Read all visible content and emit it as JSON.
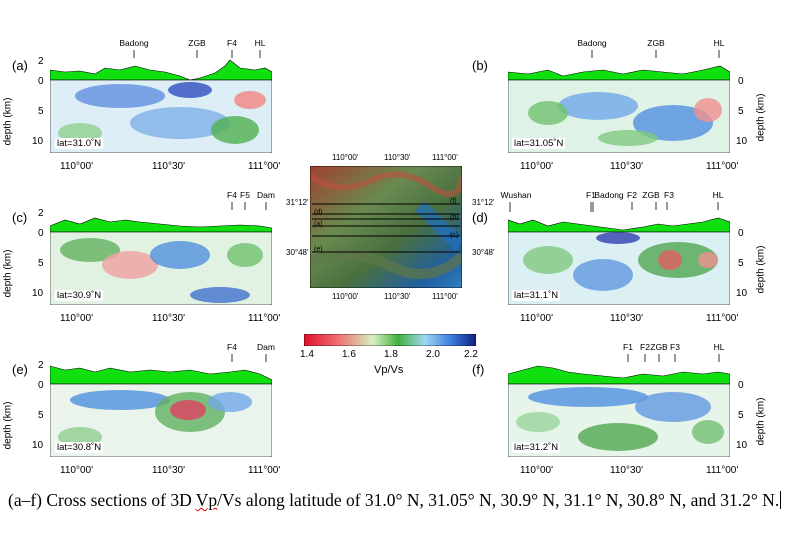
{
  "colorbar": {
    "label": "Vp/Vs",
    "ticks": [
      "1.4",
      "1.6",
      "1.8",
      "2.0",
      "2.2"
    ],
    "colors": [
      "#e0102a",
      "#f07070",
      "#d8f0c0",
      "#40b040",
      "#a0d8f0",
      "#4080e0",
      "#102080"
    ]
  },
  "map": {
    "lon_ticks": [
      "110°00'",
      "110°30'",
      "111°00'"
    ],
    "lat_ticks": [
      "31°12'",
      "30°48'"
    ],
    "profile_labels": [
      "(f)",
      "(d)",
      "(b)",
      "(a)",
      "(c)",
      "(e)"
    ]
  },
  "panels": [
    {
      "letter": "(a)",
      "lat": "lat=31.0˚N",
      "features": [
        "Badong",
        "ZGB",
        "F4",
        "HL"
      ]
    },
    {
      "letter": "(b)",
      "lat": "lat=31.05˚N",
      "features": [
        "Badong",
        "ZGB",
        "HL"
      ]
    },
    {
      "letter": "(c)",
      "lat": "lat=30.9˚N",
      "features": [
        "F4",
        "F5",
        "Dam"
      ]
    },
    {
      "letter": "(d)",
      "lat": "lat=31.1˚N",
      "features": [
        "Wushan",
        "F1",
        "Badong",
        "F2",
        "ZGB",
        "F3",
        "HL"
      ]
    },
    {
      "letter": "(e)",
      "lat": "lat=30.8˚N",
      "features": [
        "F4",
        "Dam"
      ]
    },
    {
      "letter": "(f)",
      "lat": "lat=31.2˚N",
      "features": [
        "F1",
        "F2",
        "ZGB",
        "F3",
        "HL"
      ]
    }
  ],
  "axes": {
    "x_ticks": [
      "110°00'",
      "110°30'",
      "111°00'"
    ],
    "elev_ticks": [
      "2",
      "0"
    ],
    "depth_ticks": [
      "0",
      "5",
      "10"
    ],
    "depth_label": "depth (km)"
  },
  "caption": {
    "before": "(a–f) Cross sections of 3D ",
    "marked": "Vp",
    "after": "/Vs along latitude of 31.0° N, 31.05° N, 30.9° N, 31.1° N, 30.8° N, and 31.2° N."
  }
}
